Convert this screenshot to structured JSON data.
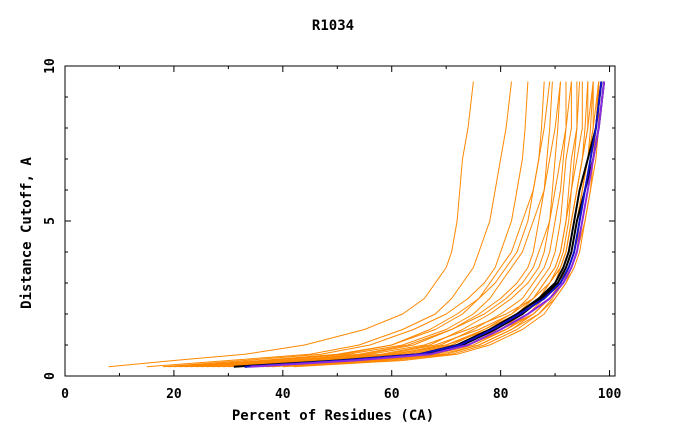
{
  "chart_data": {
    "type": "line",
    "title": "R1034",
    "xlabel": "Percent of Residues (CA)",
    "ylabel": "Distance Cutoff, A",
    "xlim": [
      0,
      101
    ],
    "ylim": [
      0,
      10
    ],
    "x_ticks": [
      0,
      20,
      40,
      60,
      80,
      100
    ],
    "y_ticks": [
      0,
      5,
      10
    ],
    "x_tick_labels": [
      "0",
      "20",
      "40",
      "60",
      "80",
      "100"
    ],
    "y_tick_labels": [
      "0",
      "5",
      "10"
    ],
    "grid": false,
    "legend": "none",
    "colors": {
      "models": "#ff8800",
      "highlight_black": "#000000",
      "highlight_blue": "#1010c8",
      "highlight_purple": "#8a2be2"
    },
    "y_samples": [
      0.3,
      0.5,
      0.7,
      1.0,
      1.5,
      2.0,
      2.5,
      3.0,
      3.5,
      4.0,
      5.0,
      6.0,
      7.0,
      8.0,
      9.5
    ],
    "series": [
      {
        "color": "#ff8800",
        "values": [
          8,
          20,
          33,
          44,
          55,
          62,
          66,
          68,
          70,
          71,
          72,
          72.5,
          73,
          74,
          75
        ]
      },
      {
        "color": "#ff8800",
        "values": [
          15,
          30,
          45,
          54,
          62,
          68,
          71,
          73,
          75,
          76,
          78,
          79,
          80,
          81,
          82
        ]
      },
      {
        "color": "#ff8800",
        "values": [
          18,
          33,
          47,
          56,
          64,
          70,
          74,
          77,
          79,
          80,
          82,
          83,
          84,
          84.5,
          85
        ]
      },
      {
        "color": "#ff8800",
        "values": [
          20,
          37,
          51,
          60,
          67,
          72,
          76,
          79,
          81,
          83,
          85,
          86,
          87,
          87.5,
          88
        ]
      },
      {
        "color": "#ff8800",
        "values": [
          22,
          40,
          55,
          64,
          71,
          76,
          80,
          83,
          85,
          86,
          87,
          88,
          88.5,
          89,
          89.5
        ]
      },
      {
        "color": "#ff8800",
        "values": [
          25,
          44,
          58,
          67,
          73,
          78,
          82,
          85,
          87,
          88,
          89,
          89.5,
          90,
          90.5,
          91
        ]
      },
      {
        "color": "#ff8800",
        "values": [
          27,
          48,
          61,
          69,
          75,
          80,
          84,
          86,
          88,
          89,
          90,
          91,
          91.5,
          92,
          92
        ]
      },
      {
        "color": "#ff8800",
        "values": [
          30,
          50,
          63,
          71,
          77,
          82,
          85,
          87,
          89,
          90,
          91,
          91.5,
          92,
          93,
          93
        ]
      },
      {
        "color": "#ff8800",
        "values": [
          32,
          52,
          65,
          73,
          78,
          83,
          86,
          88,
          90,
          91,
          92,
          92.5,
          93,
          94,
          94
        ]
      },
      {
        "color": "#ff8800",
        "values": [
          34,
          54,
          66,
          74,
          80,
          84,
          87,
          89,
          90.5,
          91.5,
          92.5,
          93,
          94,
          95,
          95
        ]
      },
      {
        "color": "#ff8800",
        "values": [
          36,
          56,
          68,
          75,
          81,
          85,
          88,
          90,
          91,
          92,
          93,
          94,
          95,
          96,
          96
        ]
      },
      {
        "color": "#ff8800",
        "values": [
          38,
          58,
          70,
          76,
          82,
          86,
          89,
          91,
          92,
          93,
          94,
          95,
          96,
          97,
          97
        ]
      },
      {
        "color": "#ff8800",
        "values": [
          40,
          60,
          71,
          77,
          83,
          87,
          89.5,
          91.5,
          92.5,
          93.5,
          95,
          96,
          97,
          98,
          98
        ]
      },
      {
        "color": "#ff8800",
        "values": [
          42,
          62,
          72,
          78,
          84,
          88,
          90,
          92,
          93,
          94,
          95.5,
          96.5,
          97.5,
          98,
          99
        ]
      },
      {
        "color": "#ff8800",
        "values": [
          23,
          42,
          56,
          66,
          74,
          81,
          86,
          89,
          91,
          92,
          93,
          94,
          95,
          96,
          97
        ]
      },
      {
        "color": "#ff8800",
        "values": [
          28,
          46,
          60,
          70,
          78,
          84,
          88,
          90.5,
          92,
          93,
          94,
          95,
          96,
          97,
          98
        ]
      },
      {
        "color": "#ff8800",
        "values": [
          33,
          51,
          64,
          72,
          80,
          86,
          89,
          91,
          92.5,
          93.5,
          94.5,
          95.5,
          96.5,
          97.5,
          98.5
        ]
      },
      {
        "color": "#ff8800",
        "values": [
          37,
          55,
          67,
          74,
          81,
          86,
          89,
          91,
          92,
          93,
          94,
          95,
          96,
          96.5,
          97
        ]
      },
      {
        "color": "#ff8800",
        "values": [
          19,
          36,
          50,
          60,
          68,
          73,
          76,
          78,
          80,
          82,
          84,
          86,
          87,
          88,
          89
        ]
      },
      {
        "color": "#ff8800",
        "values": [
          21,
          38,
          52,
          62,
          70,
          75,
          78,
          80,
          82,
          84,
          86,
          88,
          89,
          90,
          91
        ]
      },
      {
        "color": "#ff8800",
        "values": [
          24,
          41,
          54,
          63,
          71,
          77,
          81,
          84,
          86,
          87,
          89,
          90,
          91,
          92,
          93
        ]
      },
      {
        "color": "#ff8800",
        "values": [
          26,
          45,
          59,
          68,
          76,
          82,
          86,
          88,
          90,
          91,
          92,
          93,
          93.5,
          94,
          94.5
        ]
      },
      {
        "color": "#ff8800",
        "values": [
          29,
          49,
          62,
          70,
          77,
          83,
          87,
          89,
          91,
          92,
          93,
          94,
          95,
          95.5,
          96
        ]
      },
      {
        "color": "#ff8800",
        "values": [
          31,
          53,
          66,
          74,
          81,
          86,
          89,
          91.5,
          93,
          94,
          95,
          96,
          97,
          97.5,
          98
        ]
      },
      {
        "color": "#ff8800",
        "values": [
          35,
          57,
          69,
          76,
          82,
          87,
          90,
          92,
          93.5,
          94.5,
          95.5,
          96.5,
          97,
          97.5,
          98
        ]
      },
      {
        "color": "#000000",
        "values": [
          31,
          50,
          65,
          72,
          78,
          83,
          87,
          90,
          91.5,
          92.5,
          93.5,
          94.5,
          96,
          97.5,
          98.5
        ]
      },
      {
        "color": "#000000",
        "values": [
          33,
          52,
          66,
          73,
          79,
          84,
          87.5,
          90.5,
          92,
          93,
          94,
          95.5,
          97,
          98,
          99
        ]
      },
      {
        "color": "#1010c8",
        "values": [
          33,
          51,
          65,
          72.5,
          78.5,
          83.5,
          88,
          91,
          92.5,
          93.5,
          94.5,
          95.5,
          96.5,
          97.5,
          98.5
        ]
      },
      {
        "color": "#8a2be2",
        "values": [
          34,
          53,
          67,
          74,
          80,
          85,
          89,
          91.5,
          93,
          94,
          95,
          96,
          97,
          98,
          99
        ]
      }
    ]
  }
}
